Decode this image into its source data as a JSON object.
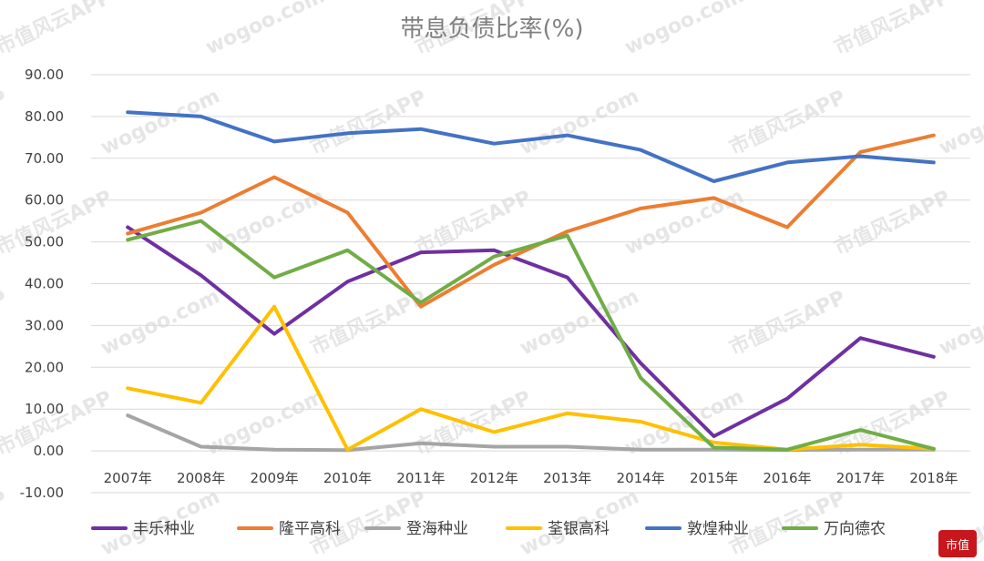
{
  "chart_data": {
    "type": "line",
    "title": "带息负债比率(%)",
    "categories": [
      "2007年",
      "2008年",
      "2009年",
      "2010年",
      "2011年",
      "2012年",
      "2013年",
      "2014年",
      "2015年",
      "2016年",
      "2017年",
      "2018年"
    ],
    "ylim": [
      -10,
      90
    ],
    "yticks": [
      "-10.00",
      "0.00",
      "10.00",
      "20.00",
      "30.00",
      "40.00",
      "50.00",
      "60.00",
      "70.00",
      "80.00",
      "90.00"
    ],
    "grid": true,
    "legend_position": "bottom",
    "series": [
      {
        "name": "丰乐种业",
        "color": "#7030a0",
        "values": [
          53.5,
          42,
          28,
          40.5,
          47.5,
          48,
          41.5,
          21,
          3.5,
          12.5,
          27,
          22.5
        ]
      },
      {
        "name": "隆平高科",
        "color": "#ed7d31",
        "values": [
          52,
          57,
          65.5,
          57,
          34.5,
          44.5,
          52.5,
          58,
          60.5,
          53.5,
          71.5,
          75.5
        ]
      },
      {
        "name": "登海种业",
        "color": "#a5a5a5",
        "values": [
          8.5,
          1,
          0.3,
          0.2,
          1.8,
          1,
          1,
          0.3,
          0.3,
          0.2,
          0.3,
          0.3
        ]
      },
      {
        "name": "荃银高科",
        "color": "#ffc000",
        "values": [
          15,
          11.5,
          34.5,
          0.3,
          10,
          4.5,
          9,
          7,
          2,
          0.3,
          1.5,
          0.5
        ]
      },
      {
        "name": "敦煌种业",
        "color": "#4472c4",
        "values": [
          81,
          80,
          74,
          76,
          77,
          73.5,
          75.5,
          72,
          64.5,
          69,
          70.5,
          69
        ]
      },
      {
        "name": "万向德农",
        "color": "#70ad47",
        "values": [
          50.5,
          55,
          41.5,
          48,
          35.5,
          46.5,
          51.5,
          17.5,
          0.8,
          0.3,
          5,
          0.5
        ]
      }
    ]
  },
  "watermarks": {
    "app_text": "市值风云APP",
    "site_text": "wogoo.com",
    "logo_text": "风云",
    "seal_text": "市值"
  }
}
